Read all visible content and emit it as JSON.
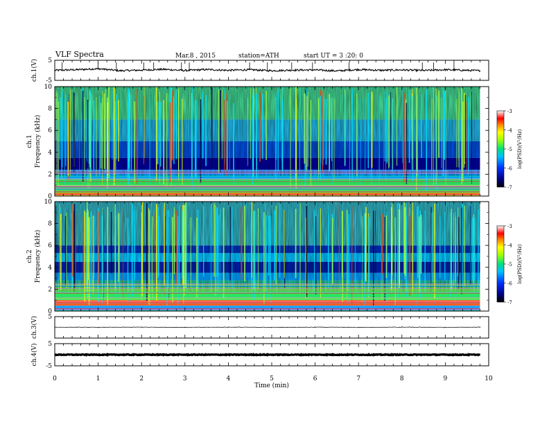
{
  "header": {
    "title": "VLF Spectra",
    "date": "Mar.8 , 2015",
    "station": "station=ATH",
    "start": "start UT = 3 :20: 0"
  },
  "colors": {
    "spectrogram_low": "#000090",
    "spectrogram_mid": "#20d0a0",
    "spectrogram_high": "#ff2020"
  },
  "chart_data": [
    {
      "id": "ch1-waveform",
      "type": "line",
      "ylabel": "ch.1(V)",
      "ylim": [
        -5,
        5
      ],
      "y_ticks": [
        "5",
        "-5"
      ],
      "xlim": [
        0,
        10
      ],
      "description_level": "noisy trace near 0 V",
      "x": [
        0,
        0.5,
        1,
        1.5,
        2,
        2.5,
        3,
        3.5,
        4,
        4.5,
        5,
        5.5,
        6,
        6.5,
        7,
        7.5,
        8,
        8.5,
        9,
        9.5,
        9.8
      ],
      "y": [
        0.0,
        0.3,
        0.8,
        -0.2,
        0.1,
        0.5,
        -0.1,
        0.4,
        0.0,
        0.3,
        -0.2,
        0.1,
        0.2,
        -0.3,
        0.4,
        0.0,
        0.2,
        -0.1,
        0.3,
        0.0,
        -0.2
      ]
    },
    {
      "id": "ch1-spectrogram",
      "type": "heatmap",
      "ylabel": "ch.1\nFrequency (kHz)",
      "ylabel_channel": "ch.1",
      "ylabel_quantity": "Frequency (kHz)",
      "ylim": [
        0,
        10
      ],
      "y_ticks": [
        "10",
        "8",
        "6",
        "4",
        "2",
        "0"
      ],
      "xlim": [
        0,
        10
      ],
      "colorbar": {
        "label": "log(PSD)(V²/Hz)",
        "range": [
          -7,
          -3
        ],
        "ticks": [
          "-3",
          "-4",
          "-5",
          "-6",
          "-7"
        ]
      }
    },
    {
      "id": "ch2-spectrogram",
      "type": "heatmap",
      "ylabel_channel": "ch.2",
      "ylabel_quantity": "Frequency (kHz)",
      "ylim": [
        0,
        10
      ],
      "y_ticks": [
        "10",
        "8",
        "6",
        "4",
        "2",
        "0"
      ],
      "xlim": [
        0,
        10
      ],
      "colorbar": {
        "label": "log(PSD)(V²/Hz)",
        "range": [
          -7,
          -3
        ],
        "ticks": [
          "-3",
          "-4",
          "-5",
          "-6",
          "-7"
        ]
      }
    },
    {
      "id": "ch3-waveform",
      "type": "line",
      "ylabel": "ch.3(V)",
      "ylim": [
        -5,
        5
      ],
      "y_ticks": [
        "5"
      ],
      "xlim": [
        0,
        10
      ],
      "x": [
        0,
        1,
        2,
        3,
        4,
        5,
        6,
        7,
        8,
        9,
        9.8
      ],
      "y": [
        0.1,
        0.0,
        0.1,
        0.0,
        0.1,
        0.0,
        0.1,
        0.0,
        0.1,
        0.0,
        0.1
      ]
    },
    {
      "id": "ch4-waveform",
      "type": "line",
      "ylabel": "ch.4(V)",
      "ylim": [
        -5,
        5
      ],
      "y_ticks": [
        "5",
        "-5"
      ],
      "xlim": [
        0,
        10
      ],
      "x": [
        0,
        2,
        4,
        6,
        8,
        9.8
      ],
      "y": [
        0,
        0,
        0,
        0,
        0,
        0
      ]
    }
  ],
  "x_axis": {
    "label": "Time (min)",
    "ticks": [
      "0",
      "1",
      "2",
      "3",
      "4",
      "5",
      "6",
      "7",
      "8",
      "9",
      "10"
    ]
  }
}
